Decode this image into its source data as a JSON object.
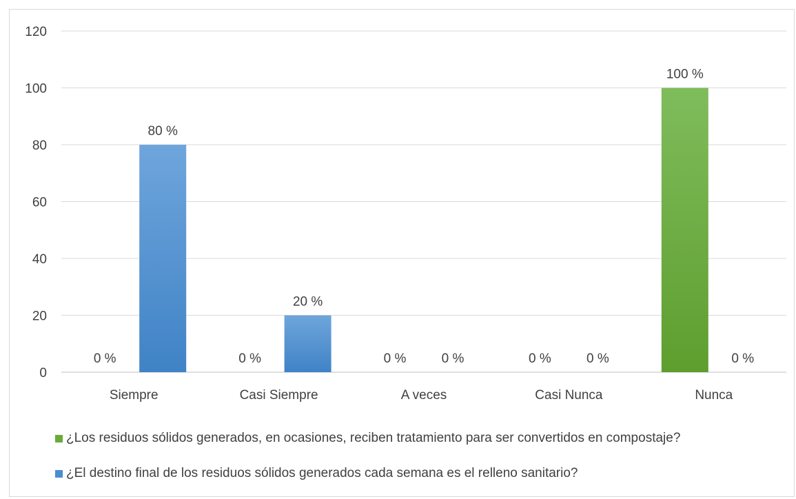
{
  "chart_data": {
    "type": "bar",
    "categories": [
      "Siempre",
      "Casi Siempre",
      "A veces",
      "Casi Nunca",
      "Nunca"
    ],
    "series": [
      {
        "name": "¿Los residuos sólidos generados, en ocasiones, reciben tratamiento para ser convertidos en compostaje?",
        "color": "#6aaa3a",
        "values": [
          0,
          0,
          0,
          0,
          100
        ],
        "labels": [
          "0 %",
          "0 %",
          "0 %",
          "0 %",
          "100 %"
        ]
      },
      {
        "name": "¿El destino final de los residuos sólidos generados cada semana es el relleno sanitario?",
        "color": "#4a8ed1",
        "values": [
          80,
          20,
          0,
          0,
          0
        ],
        "labels": [
          "80 %",
          "20 %",
          "0 %",
          "0 %",
          "0 %"
        ]
      }
    ],
    "ylim": [
      0,
      120
    ],
    "yticks": [
      0,
      20,
      40,
      60,
      80,
      100,
      120
    ],
    "grid": true,
    "legend_position": "bottom",
    "title": "",
    "xlabel": "",
    "ylabel": ""
  }
}
